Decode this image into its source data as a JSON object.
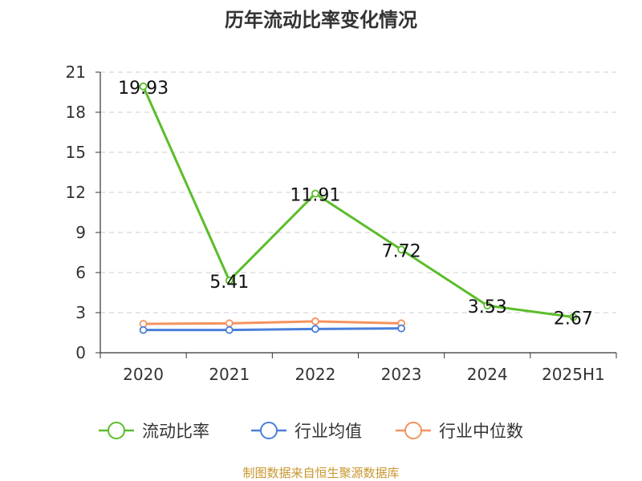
{
  "source_text": "制图数据来自恒生聚源数据库",
  "source_color": "#c8962d",
  "chart_data": {
    "type": "line",
    "title": "历年流动比率变化情况",
    "xlabel": "",
    "ylabel": "",
    "categories": [
      "2020",
      "2021",
      "2022",
      "2023",
      "2024",
      "2025H1"
    ],
    "ylim": [
      0,
      21
    ],
    "yticks": [
      0,
      3,
      6,
      9,
      12,
      15,
      18,
      21
    ],
    "grid": true,
    "legend_position": "bottom",
    "series": [
      {
        "name": "流动比率",
        "color": "#5bbd2b",
        "values": [
          19.93,
          5.41,
          11.91,
          7.72,
          3.53,
          2.67
        ],
        "data_labels": [
          "19.93",
          "5.41",
          "11.91",
          "7.72",
          "3.53",
          "2.67"
        ]
      },
      {
        "name": "行业均值",
        "color": "#4a7fdb",
        "values": [
          1.7,
          1.7,
          1.78,
          1.82,
          null,
          null
        ]
      },
      {
        "name": "行业中位数",
        "color": "#f4935e",
        "values": [
          2.16,
          2.2,
          2.35,
          2.2,
          null,
          null
        ]
      }
    ]
  }
}
